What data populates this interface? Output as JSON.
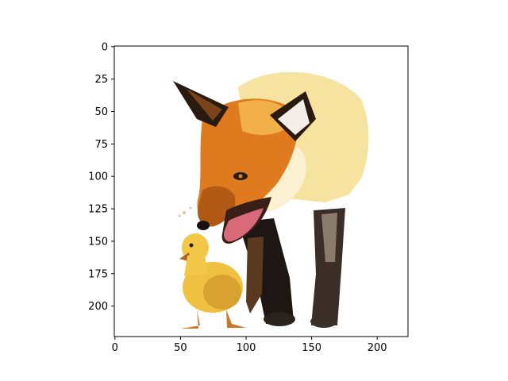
{
  "figure": {
    "x_ticks": [
      "0",
      "50",
      "100",
      "150",
      "200"
    ],
    "y_ticks": [
      "0",
      "25",
      "50",
      "75",
      "100",
      "125",
      "150",
      "175",
      "200"
    ]
  },
  "image_axes": {
    "x_ticks_values": [
      0,
      50,
      100,
      150,
      200
    ],
    "y_ticks_values": [
      0,
      25,
      50,
      75,
      100,
      125,
      150,
      175,
      200
    ],
    "xlim": [
      -0.5,
      223.5
    ],
    "ylim": [
      223.5,
      -0.5
    ]
  },
  "scene": {
    "subjects": [
      "fox",
      "duckling"
    ],
    "fox_colors": {
      "fur": "#e07a1f",
      "light_fur": "#f2c35a",
      "dark": "#2a1a10",
      "tongue": "#d06070"
    },
    "duckling_colors": {
      "body": "#f0c040",
      "shade": "#c8921a",
      "beak": "#b0641e"
    }
  }
}
